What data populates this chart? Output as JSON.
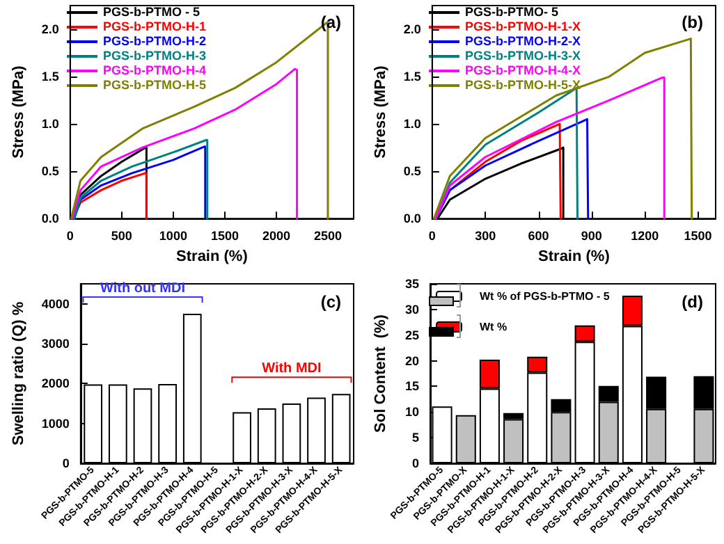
{
  "chart_data": [
    {
      "type": "line",
      "title": "(a)",
      "xlabel": "Strain (%)",
      "ylabel": "Stress (MPa)",
      "xlim": [
        0,
        2750
      ],
      "xticks": [
        0,
        500,
        1000,
        1500,
        2000,
        2500
      ],
      "ylim": [
        0,
        2.25
      ],
      "yticks": [
        {
          "value": 0,
          "label": "0.0"
        },
        {
          "value": 0.5,
          "label": "0.5"
        },
        {
          "value": 1,
          "label": "1.0"
        },
        {
          "value": 1.5,
          "label": "1.5"
        },
        {
          "value": 2,
          "label": "2.0"
        }
      ],
      "legend": "top left",
      "marker": "none",
      "grid": false,
      "line_style": "solid",
      "series": [
        {
          "name": "PGS-b-PTMO - 5",
          "color": "#000000",
          "x": [
            30,
            100,
            300,
            500,
            730,
            740,
            740
          ],
          "values": [
            0,
            0.25,
            0.45,
            0.6,
            0.75,
            0.75,
            0
          ]
        },
        {
          "name": "PGS-b-PTMO-H-1",
          "color": "#ff0000",
          "x": [
            30,
            100,
            300,
            500,
            730,
            740,
            740
          ],
          "values": [
            0,
            0.17,
            0.3,
            0.4,
            0.48,
            0.48,
            0
          ]
        },
        {
          "name": "PGS-b-PTMO-H-2",
          "color": "#0000ff",
          "x": [
            40,
            100,
            300,
            600,
            1000,
            1300,
            1310,
            1310
          ],
          "values": [
            0,
            0.2,
            0.35,
            0.48,
            0.62,
            0.76,
            0.76,
            0
          ]
        },
        {
          "name": "PGS-b-PTMO-H-3",
          "color": "#008080",
          "x": [
            40,
            100,
            300,
            600,
            1000,
            1320,
            1330,
            1330
          ],
          "values": [
            0,
            0.22,
            0.4,
            0.55,
            0.7,
            0.83,
            0.83,
            0
          ]
        },
        {
          "name": "PGS-b-PTMO-H-4",
          "color": "#ff00ff",
          "x": [
            20,
            100,
            300,
            700,
            1200,
            1600,
            2000,
            2180,
            2200,
            2200
          ],
          "values": [
            0,
            0.3,
            0.55,
            0.75,
            0.95,
            1.15,
            1.42,
            1.58,
            1.57,
            0
          ]
        },
        {
          "name": "PGS-b-PTMO-H-5",
          "color": "#808000",
          "x": [
            10,
            100,
            300,
            700,
            1200,
            1600,
            2000,
            2490,
            2500,
            2500
          ],
          "values": [
            0,
            0.4,
            0.65,
            0.95,
            1.18,
            1.38,
            1.65,
            2.07,
            2.07,
            0
          ]
        }
      ]
    },
    {
      "type": "line",
      "title": "(b)",
      "xlabel": "Strain (%)",
      "ylabel": "Stress (MPa)",
      "xlim": [
        0,
        1600
      ],
      "xticks": [
        0,
        300,
        600,
        900,
        1200,
        1500
      ],
      "ylim": [
        0,
        2.25
      ],
      "yticks": [
        {
          "value": 0,
          "label": "0.0"
        },
        {
          "value": 0.5,
          "label": "0.5"
        },
        {
          "value": 1,
          "label": "1.0"
        },
        {
          "value": 1.5,
          "label": "1.5"
        },
        {
          "value": 2,
          "label": "2.0"
        }
      ],
      "legend": "top left",
      "marker": "none",
      "grid": false,
      "line_style": "solid",
      "series": [
        {
          "name": "PGS-b-PTMO- 5",
          "color": "#000000",
          "x": [
            30,
            100,
            300,
            500,
            730,
            740,
            740
          ],
          "values": [
            0,
            0.2,
            0.42,
            0.58,
            0.74,
            0.75,
            0
          ]
        },
        {
          "name": "PGS-b-PTMO-H-1-X",
          "color": "#ff0000",
          "x": [
            20,
            100,
            300,
            500,
            720,
            725,
            725
          ],
          "values": [
            0,
            0.3,
            0.6,
            0.82,
            1.0,
            1.0,
            0
          ]
        },
        {
          "name": "PGS-b-PTMO-H-2-X",
          "color": "#0000ff",
          "x": [
            20,
            100,
            300,
            600,
            875,
            880,
            880
          ],
          "values": [
            0,
            0.3,
            0.56,
            0.82,
            1.05,
            1.05,
            0
          ]
        },
        {
          "name": "PGS-b-PTMO-H-3-X",
          "color": "#008080",
          "x": [
            20,
            100,
            300,
            600,
            815,
            820,
            820
          ],
          "values": [
            0,
            0.38,
            0.78,
            1.12,
            1.38,
            1.38,
            0
          ]
        },
        {
          "name": "PGS-b-PTMO-H-4-X",
          "color": "#ff00ff",
          "x": [
            20,
            100,
            300,
            700,
            1000,
            1300,
            1310,
            1310
          ],
          "values": [
            0,
            0.35,
            0.65,
            1.02,
            1.25,
            1.49,
            1.49,
            0
          ]
        },
        {
          "name": "PGS-b-PTMO-H-5-X",
          "color": "#808000",
          "x": [
            10,
            100,
            300,
            700,
            1000,
            1200,
            1460,
            1465,
            1465
          ],
          "values": [
            0,
            0.45,
            0.85,
            1.3,
            1.5,
            1.75,
            1.9,
            1.9,
            0
          ]
        }
      ]
    },
    {
      "type": "bar",
      "title": "(c)",
      "ylabel": "Swelling ratio (Q) %",
      "categories": [
        "PGS-b-PTMO-5",
        "PGS-b-PTMO-H-1",
        "PGS-b-PTMO-H-2",
        "PGS-b-PTMO-H-3",
        "PGS-b-PTMO-H-4",
        "PGS-b-PTMO-H-5",
        "PGS-b-PTMO-H-1-X",
        "PGS-b-PTMO-H-2-X",
        "PGS-b-PTMO-H-3-X",
        "PGS-b-PTMO-H-4-X",
        "PGS-b-PTMO-H-5-X"
      ],
      "values": [
        1980,
        1980,
        1880,
        1990,
        3750,
        null,
        1280,
        1380,
        1500,
        1650,
        1740
      ],
      "color": "#ffffff",
      "ylim": [
        0,
        4500
      ],
      "yticks": [
        0,
        1000,
        2000,
        3000,
        4000
      ],
      "grid": false,
      "annotations": [
        "With out MDI",
        "With MDI"
      ]
    },
    {
      "type": "bar",
      "title": "(d)",
      "ylabel": "Sol Content  (%)",
      "categories": [
        "PGS-b-PTMO-5",
        "PGS-b-PTMO-X",
        "PGS-b-PTMO-H-1",
        "PGS-b-PTMO-H-1-X",
        "PGS-b-PTMO-H-2",
        "PGS-b-PTMO-H-2-X",
        "PGS-b-PTMO-H-3",
        "PGS-b-PTMO-H-3-X",
        "PGS-b-PTMO-H-4",
        "PGS-b-PTMO-H-4-X",
        "PGS-b-PTMO-H-5",
        "PGS-b-PTMO-H-5-X"
      ],
      "stacked": true,
      "ylim": [
        0,
        35
      ],
      "yticks": [
        0,
        5,
        10,
        15,
        20,
        25,
        30,
        35
      ],
      "grid": false,
      "legend": "top left",
      "series": [
        {
          "name": "Wt % of PGS-b-PTMO - 5",
          "color": "#ffffff",
          "values": [
            11.1,
            null,
            14.6,
            null,
            17.7,
            null,
            23.7,
            null,
            26.8,
            null,
            null,
            null
          ]
        },
        {
          "color": "#c0c0c0",
          "values": [
            null,
            9.4,
            null,
            8.6,
            null,
            10,
            null,
            12,
            null,
            10.6,
            null,
            10.6
          ]
        },
        {
          "name": "Wt %",
          "color": "#ff0000",
          "values": [
            null,
            null,
            5.6,
            null,
            3.1,
            null,
            3.2,
            null,
            5.9,
            null,
            null,
            null
          ]
        },
        {
          "color": "#000000",
          "values": [
            null,
            null,
            null,
            1.2,
            null,
            2.5,
            null,
            3.1,
            null,
            6.3,
            null,
            6.4
          ]
        }
      ]
    }
  ]
}
